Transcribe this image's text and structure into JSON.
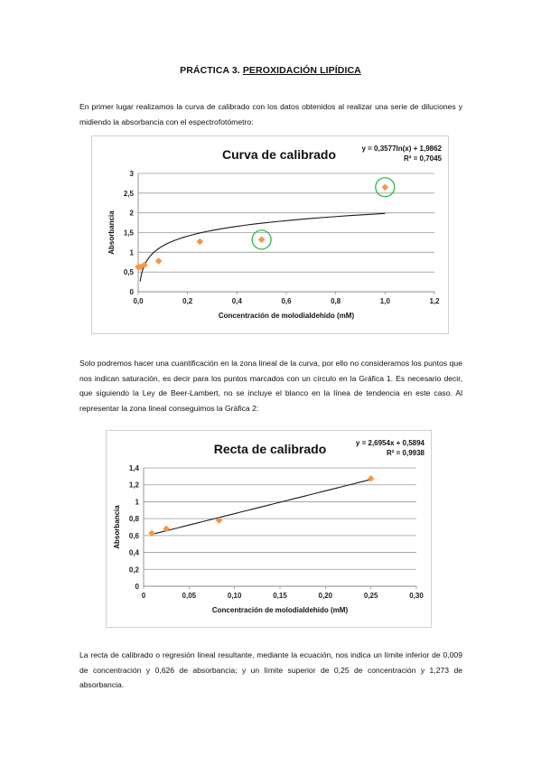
{
  "title": {
    "prefix": "PRÁCTICA 3.",
    "main": "PEROXIDACIÓN LIPÍDICA"
  },
  "paragraphs": [
    "En primer lugar realizamos la curva de calibrado con los datos obtenidos al realizar una serie de diluciones y midiendo la absorbancia con el espectrofotómetro:",
    "Solo podremos hacer una cuantificación en la zona lineal de la curva, por ello no consideramos los puntos que nos indican saturación, es decir para los puntos marcados con un círculo en la Gráfica 1. Es necesario decir, que siguiendo la Ley de Beer-Lambert, no se incluye el blanco en la línea de tendencia en este caso. Al representar la zona lineal conseguimos la Gráfica 2:",
    "La recta de calibrado o regresión lineal resultante, mediante la ecuación, nos indica un límite inferior de 0,009 de concentración y 0,626 de absorbancia; y un límite superior de 0,25 de concentración y 1,273 de absorbancia."
  ],
  "chart_data": [
    {
      "type": "scatter",
      "title": "Curva de calibrado",
      "xlabel": "Concentración de molodialdehido (mM)",
      "ylabel": "Absorbancia",
      "xlim": [
        0,
        1.2
      ],
      "ylim": [
        0,
        3
      ],
      "xticks": [
        "0,0",
        "0,2",
        "0,4",
        "0,6",
        "0,8",
        "1,0",
        "1,2"
      ],
      "yticks": [
        "0",
        "0,5",
        "1",
        "1,5",
        "2",
        "2,5",
        "3"
      ],
      "points": [
        {
          "x": 0.0,
          "y": 0.63
        },
        {
          "x": 0.009,
          "y": 0.626
        },
        {
          "x": 0.025,
          "y": 0.68
        },
        {
          "x": 0.083,
          "y": 0.78
        },
        {
          "x": 0.25,
          "y": 1.273
        },
        {
          "x": 0.5,
          "y": 1.32
        },
        {
          "x": 1.0,
          "y": 2.65
        }
      ],
      "circled_points": [
        5,
        6
      ],
      "trendline": {
        "kind": "log",
        "a": 0.3577,
        "b": 1.9862,
        "x_from": 0.008,
        "x_to": 1.0
      },
      "equation": "y = 0,3577ln(x) + 1,9862",
      "r2": "R² = 0,7045",
      "grid": true,
      "marker_color": "#f79646",
      "circle_color": "#2db84b"
    },
    {
      "type": "scatter",
      "title": "Recta de calibrado",
      "xlabel": "Concentración de molodialdehido (mM)",
      "ylabel": "Absorbancia",
      "xlim": [
        0,
        0.3
      ],
      "ylim": [
        0,
        1.4
      ],
      "xticks": [
        "0",
        "0,05",
        "0,10",
        "0,15",
        "0,20",
        "0,25",
        "0,30"
      ],
      "yticks": [
        "0",
        "0,2",
        "0,4",
        "0,6",
        "0,8",
        "1",
        "1,2",
        "1,4"
      ],
      "points": [
        {
          "x": 0.009,
          "y": 0.626
        },
        {
          "x": 0.025,
          "y": 0.68
        },
        {
          "x": 0.083,
          "y": 0.78
        },
        {
          "x": 0.25,
          "y": 1.273
        }
      ],
      "trendline": {
        "kind": "linear",
        "a": 2.6954,
        "b": 0.5894,
        "x_from": 0.009,
        "x_to": 0.25
      },
      "equation": "y = 2,6954x + 0,5894",
      "r2": "R² = 0,9938",
      "grid": true,
      "marker_color": "#f79646"
    }
  ]
}
